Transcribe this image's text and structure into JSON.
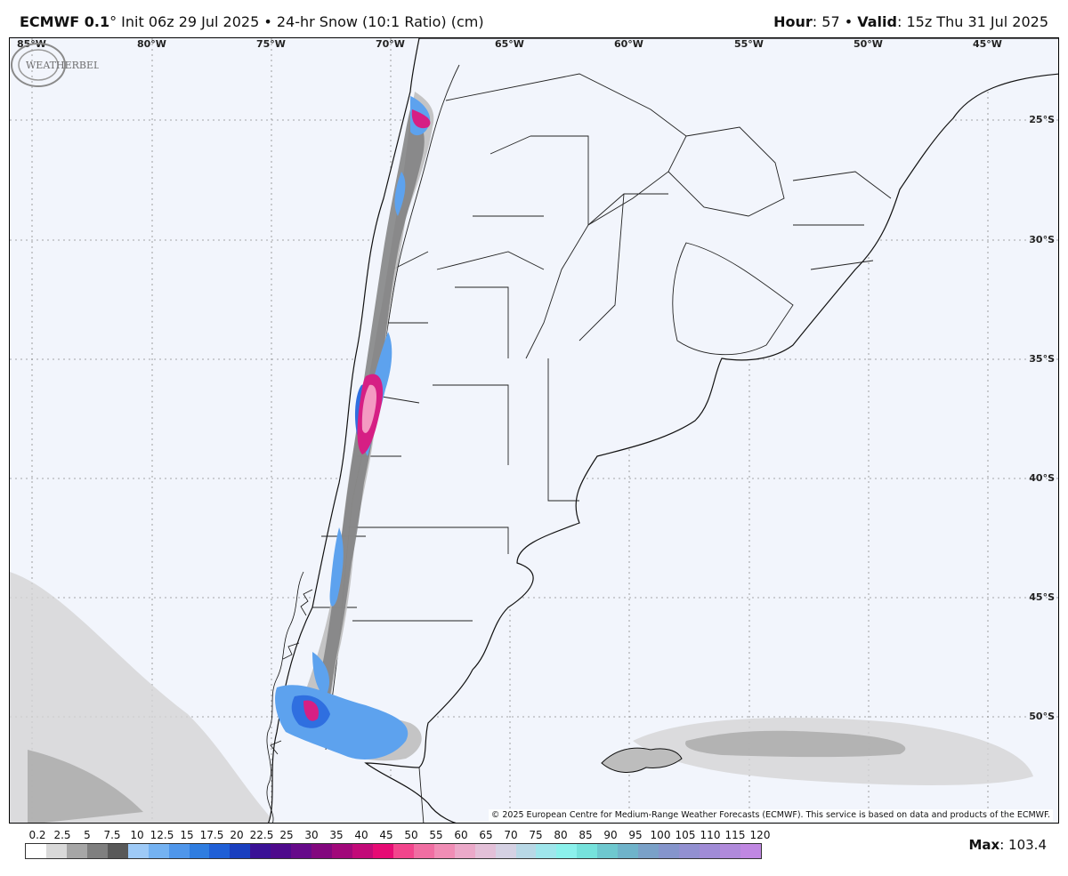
{
  "header": {
    "model": "ECMWF 0.1",
    "degree": "°",
    "init": " Init 06z 29 Jul 2025",
    "sep": " • ",
    "product": "24-hr Snow (10:1 Ratio) (cm)",
    "hour_label": "Hour",
    "hour_value": ": 57",
    "valid_label": "Valid",
    "valid_value": ": 15z Thu 31 Jul 2025"
  },
  "map": {
    "lon_labels": [
      "85°W",
      "80°W",
      "75°W",
      "70°W",
      "65°W",
      "60°W",
      "55°W",
      "50°W",
      "45°W"
    ],
    "lat_labels": [
      "25°S",
      "30°S",
      "35°S",
      "40°S",
      "45°S",
      "50°S"
    ],
    "copyright": "© 2025 European Centre for Medium-Range Weather Forecasts (ECMWF). This service is based on data and products of the ECMWF.",
    "logo_text": "WEATHERBELL"
  },
  "legend": {
    "labels": [
      "0.2",
      "2.5",
      "5",
      "7.5",
      "10",
      "12.5",
      "15",
      "17.5",
      "20",
      "22.5",
      "25",
      "30",
      "35",
      "40",
      "45",
      "50",
      "55",
      "60",
      "65",
      "70",
      "75",
      "80",
      "85",
      "90",
      "95",
      "100",
      "105",
      "110",
      "115",
      "120"
    ],
    "colors": [
      "#ffffff",
      "#d9d9d9",
      "#a6a6a6",
      "#7f7f7f",
      "#595959",
      "#9ecaf7",
      "#74b2f2",
      "#4f96ea",
      "#2f7de0",
      "#1f5fd6",
      "#1a3fbf",
      "#3a1196",
      "#4e0a8c",
      "#660a8a",
      "#82077e",
      "#a1087a",
      "#c20a78",
      "#e60b74",
      "#f2458c",
      "#f06ea2",
      "#f08db5",
      "#eba9c9",
      "#e3c0d8",
      "#d5d1e3",
      "#b8d8e6",
      "#9fe6ec",
      "#8bf1ec",
      "#76e2dc",
      "#6ec8cf",
      "#6fb3ca",
      "#7aa1c8",
      "#8595cc",
      "#9290d1",
      "#a08bd6",
      "#b08adb",
      "#c087e2"
    ],
    "max_label": "Max",
    "max_value": ": 103.4"
  }
}
